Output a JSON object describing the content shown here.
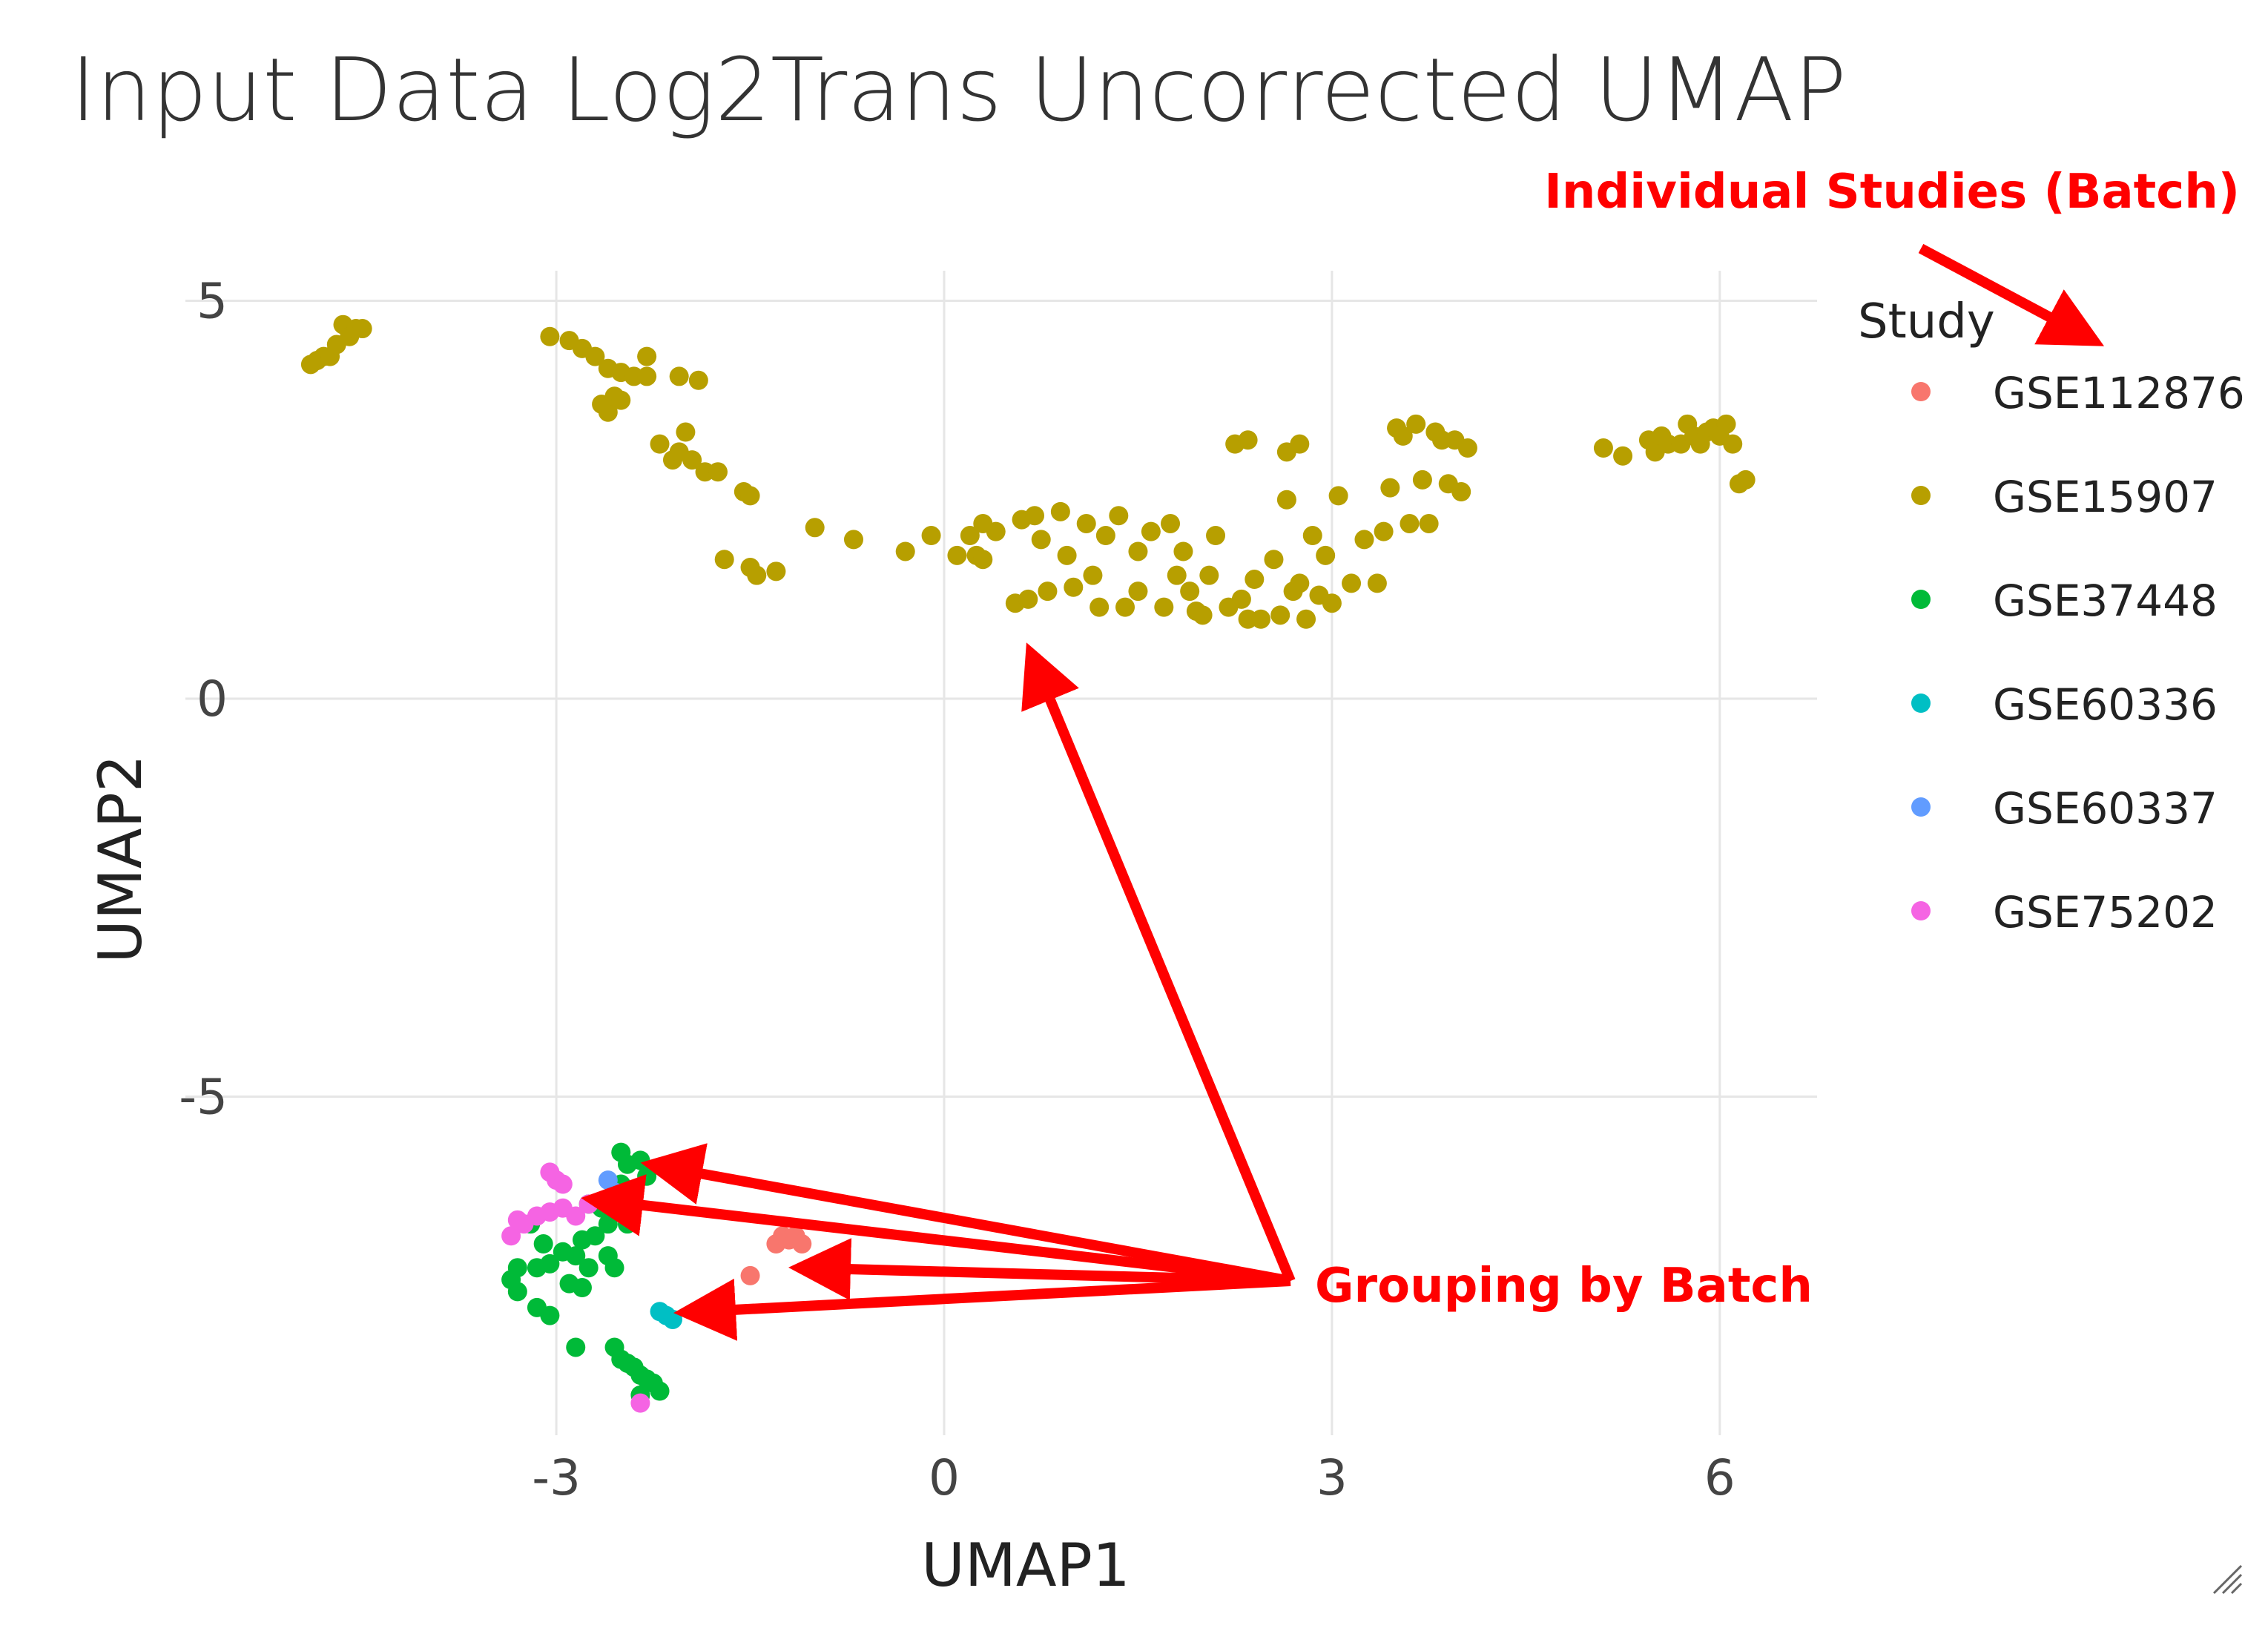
{
  "chart_data": {
    "type": "scatter",
    "title": "Input Data Log2Trans Uncorrected UMAP",
    "xlabel": "UMAP1",
    "ylabel": "UMAP2",
    "xlim": [
      -4.5,
      6.8
    ],
    "ylim": [
      -9.4,
      5.3
    ],
    "xticks": [
      -3,
      0,
      3,
      6
    ],
    "yticks": [
      5,
      0,
      -5
    ],
    "xtick_labels": [
      "-3",
      "0",
      "3",
      "6"
    ],
    "ytick_labels": [
      "5",
      "0",
      "-5"
    ],
    "grid": true,
    "legend": {
      "title": "Study",
      "position": "right"
    },
    "series": [
      {
        "name": "GSE112876",
        "color": "#F8766D",
        "points": [
          [
            -1.3,
            -6.85
          ],
          [
            -1.25,
            -6.75
          ],
          [
            -1.2,
            -6.8
          ],
          [
            -1.15,
            -6.75
          ],
          [
            -1.1,
            -6.85
          ],
          [
            -1.5,
            -7.25
          ]
        ]
      },
      {
        "name": "GSE15907",
        "color": "#B79F00",
        "points": [
          [
            -4.9,
            4.2
          ],
          [
            -4.85,
            4.25
          ],
          [
            -4.8,
            4.3
          ],
          [
            -4.75,
            4.3
          ],
          [
            -4.7,
            4.45
          ],
          [
            -4.65,
            4.7
          ],
          [
            -4.6,
            4.55
          ],
          [
            -4.55,
            4.65
          ],
          [
            -4.5,
            4.65
          ],
          [
            -3.05,
            4.55
          ],
          [
            -2.9,
            4.5
          ],
          [
            -2.8,
            4.4
          ],
          [
            -2.7,
            4.3
          ],
          [
            -2.6,
            4.15
          ],
          [
            -2.5,
            4.1
          ],
          [
            -2.4,
            4.05
          ],
          [
            -2.3,
            4.05
          ],
          [
            -2.3,
            4.3
          ],
          [
            -2.65,
            3.7
          ],
          [
            -2.6,
            3.6
          ],
          [
            -2.55,
            3.8
          ],
          [
            -2.5,
            3.75
          ],
          [
            -2.05,
            4.05
          ],
          [
            -1.9,
            4.0
          ],
          [
            -2.2,
            3.2
          ],
          [
            -2.1,
            3.0
          ],
          [
            -2.05,
            3.1
          ],
          [
            -1.95,
            3.0
          ],
          [
            -2.0,
            3.35
          ],
          [
            -1.85,
            2.85
          ],
          [
            -1.75,
            2.85
          ],
          [
            -1.55,
            2.6
          ],
          [
            -1.5,
            2.55
          ],
          [
            -1.7,
            1.75
          ],
          [
            -1.5,
            1.65
          ],
          [
            -1.45,
            1.55
          ],
          [
            -1.3,
            1.6
          ],
          [
            -1.0,
            2.15
          ],
          [
            -0.7,
            2.0
          ],
          [
            -0.3,
            1.85
          ],
          [
            -0.1,
            2.05
          ],
          [
            0.1,
            1.8
          ],
          [
            0.2,
            2.05
          ],
          [
            0.25,
            1.8
          ],
          [
            0.3,
            1.75
          ],
          [
            0.3,
            2.2
          ],
          [
            0.4,
            2.1
          ],
          [
            0.55,
            1.2
          ],
          [
            0.65,
            1.25
          ],
          [
            0.6,
            2.25
          ],
          [
            0.7,
            2.3
          ],
          [
            0.75,
            2.0
          ],
          [
            0.8,
            1.35
          ],
          [
            0.9,
            2.35
          ],
          [
            0.95,
            1.8
          ],
          [
            1.0,
            1.4
          ],
          [
            1.1,
            2.2
          ],
          [
            1.15,
            1.55
          ],
          [
            1.2,
            1.15
          ],
          [
            1.25,
            2.05
          ],
          [
            1.35,
            2.3
          ],
          [
            1.4,
            1.15
          ],
          [
            1.5,
            1.85
          ],
          [
            1.5,
            1.35
          ],
          [
            1.6,
            2.1
          ],
          [
            1.7,
            1.15
          ],
          [
            1.75,
            2.2
          ],
          [
            1.8,
            1.55
          ],
          [
            1.85,
            1.85
          ],
          [
            1.9,
            1.35
          ],
          [
            1.95,
            1.1
          ],
          [
            2.0,
            1.05
          ],
          [
            2.05,
            1.55
          ],
          [
            2.1,
            2.05
          ],
          [
            2.2,
            1.15
          ],
          [
            2.3,
            1.25
          ],
          [
            2.35,
            1.0
          ],
          [
            2.4,
            1.5
          ],
          [
            2.45,
            1.0
          ],
          [
            2.55,
            1.75
          ],
          [
            2.6,
            1.05
          ],
          [
            2.7,
            1.35
          ],
          [
            2.75,
            1.45
          ],
          [
            2.8,
            1.0
          ],
          [
            2.85,
            2.05
          ],
          [
            2.9,
            1.3
          ],
          [
            2.95,
            1.8
          ],
          [
            3.0,
            1.2
          ],
          [
            3.05,
            2.55
          ],
          [
            3.15,
            1.45
          ],
          [
            3.25,
            2.0
          ],
          [
            3.35,
            1.45
          ],
          [
            3.4,
            2.1
          ],
          [
            3.45,
            2.65
          ],
          [
            3.5,
            3.4
          ],
          [
            3.55,
            3.3
          ],
          [
            3.6,
            2.2
          ],
          [
            3.65,
            3.45
          ],
          [
            3.7,
            2.75
          ],
          [
            3.75,
            2.2
          ],
          [
            3.8,
            3.35
          ],
          [
            3.85,
            3.25
          ],
          [
            3.9,
            2.7
          ],
          [
            3.95,
            3.25
          ],
          [
            4.0,
            2.6
          ],
          [
            4.05,
            3.15
          ],
          [
            2.25,
            3.2
          ],
          [
            2.35,
            3.25
          ],
          [
            2.65,
            3.1
          ],
          [
            2.75,
            3.2
          ],
          [
            2.65,
            2.5
          ],
          [
            5.1,
            3.15
          ],
          [
            5.25,
            3.05
          ],
          [
            5.45,
            3.25
          ],
          [
            5.5,
            3.1
          ],
          [
            5.55,
            3.3
          ],
          [
            5.6,
            3.2
          ],
          [
            5.7,
            3.2
          ],
          [
            5.75,
            3.45
          ],
          [
            5.8,
            3.3
          ],
          [
            5.85,
            3.2
          ],
          [
            5.9,
            3.35
          ],
          [
            5.95,
            3.4
          ],
          [
            6.0,
            3.3
          ],
          [
            6.05,
            3.45
          ],
          [
            6.1,
            3.2
          ],
          [
            6.15,
            2.7
          ],
          [
            6.2,
            2.75
          ]
        ]
      },
      {
        "name": "GSE37448",
        "color": "#00BA38",
        "points": [
          [
            -2.5,
            -5.7
          ],
          [
            -2.45,
            -5.85
          ],
          [
            -2.35,
            -5.8
          ],
          [
            -2.3,
            -6.0
          ],
          [
            -2.5,
            -6.1
          ],
          [
            -2.55,
            -6.35
          ],
          [
            -2.65,
            -6.4
          ],
          [
            -2.75,
            -6.35
          ],
          [
            -2.45,
            -6.6
          ],
          [
            -2.6,
            -6.6
          ],
          [
            -2.7,
            -6.75
          ],
          [
            -2.8,
            -6.8
          ],
          [
            -2.85,
            -7.0
          ],
          [
            -2.95,
            -6.95
          ],
          [
            -3.05,
            -7.1
          ],
          [
            -3.15,
            -7.15
          ],
          [
            -3.3,
            -7.15
          ],
          [
            -3.35,
            -7.3
          ],
          [
            -3.3,
            -7.45
          ],
          [
            -3.1,
            -6.85
          ],
          [
            -3.2,
            -6.6
          ],
          [
            -2.9,
            -7.35
          ],
          [
            -2.8,
            -7.4
          ],
          [
            -2.75,
            -7.15
          ],
          [
            -3.15,
            -7.65
          ],
          [
            -3.05,
            -7.75
          ],
          [
            -2.85,
            -8.15
          ],
          [
            -2.55,
            -8.15
          ],
          [
            -2.5,
            -8.3
          ],
          [
            -2.45,
            -8.35
          ],
          [
            -2.4,
            -8.4
          ],
          [
            -2.35,
            -8.5
          ],
          [
            -2.3,
            -8.55
          ],
          [
            -2.25,
            -8.6
          ],
          [
            -2.2,
            -8.7
          ],
          [
            -2.35,
            -8.75
          ],
          [
            -2.6,
            -7.0
          ],
          [
            -2.55,
            -7.15
          ]
        ]
      },
      {
        "name": "GSE60336",
        "color": "#00BFC4",
        "points": [
          [
            -2.2,
            -7.7
          ],
          [
            -2.15,
            -7.75
          ],
          [
            -2.1,
            -7.8
          ]
        ]
      },
      {
        "name": "GSE60337",
        "color": "#619CFF",
        "points": [
          [
            -2.6,
            -6.05
          ],
          [
            -2.55,
            -6.2
          ]
        ]
      },
      {
        "name": "GSE75202",
        "color": "#F564E3",
        "points": [
          [
            -3.05,
            -5.95
          ],
          [
            -3.0,
            -6.05
          ],
          [
            -2.95,
            -6.1
          ],
          [
            -3.3,
            -6.55
          ],
          [
            -3.25,
            -6.6
          ],
          [
            -3.15,
            -6.5
          ],
          [
            -3.05,
            -6.45
          ],
          [
            -2.95,
            -6.4
          ],
          [
            -2.85,
            -6.5
          ],
          [
            -2.75,
            -6.35
          ],
          [
            -3.35,
            -6.75
          ],
          [
            -2.35,
            -8.85
          ]
        ]
      }
    ]
  },
  "annotations": {
    "legend_callout": "Individual Studies (Batch)",
    "cluster_callout": "Grouping by Batch",
    "color": "#FF0000"
  }
}
